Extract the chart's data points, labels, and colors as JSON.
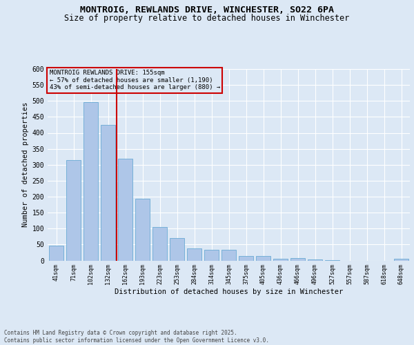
{
  "title1": "MONTROIG, REWLANDS DRIVE, WINCHESTER, SO22 6PA",
  "title2": "Size of property relative to detached houses in Winchester",
  "xlabel": "Distribution of detached houses by size in Winchester",
  "ylabel": "Number of detached properties",
  "categories": [
    "41sqm",
    "71sqm",
    "102sqm",
    "132sqm",
    "162sqm",
    "193sqm",
    "223sqm",
    "253sqm",
    "284sqm",
    "314sqm",
    "345sqm",
    "375sqm",
    "405sqm",
    "436sqm",
    "466sqm",
    "496sqm",
    "527sqm",
    "557sqm",
    "587sqm",
    "618sqm",
    "648sqm"
  ],
  "values": [
    47,
    315,
    497,
    425,
    320,
    194,
    104,
    70,
    38,
    34,
    33,
    13,
    13,
    5,
    8,
    4,
    1,
    0,
    0,
    0,
    5
  ],
  "bar_color": "#aec6e8",
  "bar_edge_color": "#6aaad4",
  "vline_xidx": 3.5,
  "vline_color": "#cc0000",
  "annotation_title": "MONTROIG REWLANDS DRIVE: 155sqm",
  "annotation_line1": "← 57% of detached houses are smaller (1,190)",
  "annotation_line2": "43% of semi-detached houses are larger (880) →",
  "ylim_max": 600,
  "yticks": [
    0,
    50,
    100,
    150,
    200,
    250,
    300,
    350,
    400,
    450,
    500,
    550,
    600
  ],
  "footer1": "Contains HM Land Registry data © Crown copyright and database right 2025.",
  "footer2": "Contains public sector information licensed under the Open Government Licence v3.0.",
  "bg_color": "#dce8f5",
  "grid_color": "#ffffff",
  "ann_edge_color": "#cc0000"
}
